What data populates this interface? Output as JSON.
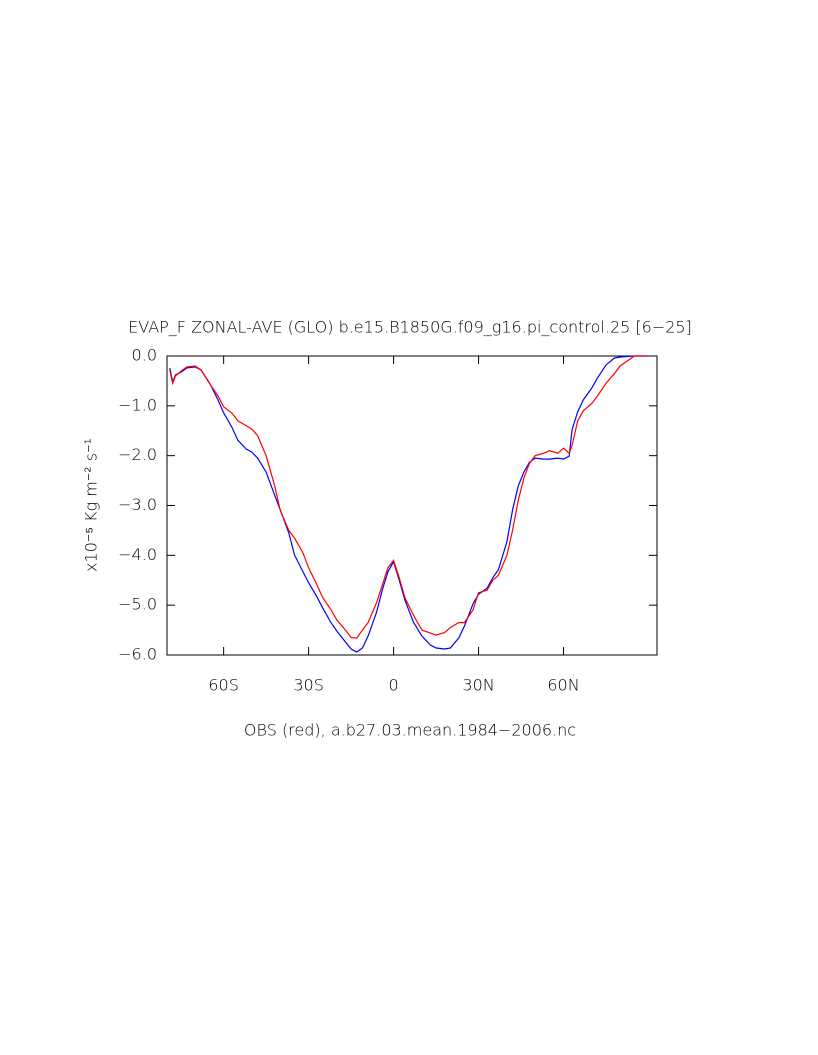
{
  "chart_data": {
    "type": "line",
    "title": "EVAP_F ZONAL-AVE (GLO) b.e15.B1850G.f09_g16.pi_control.25 [6−25]",
    "x_label": "OBS (red), a.b27.03.mean.1984−2006.nc",
    "y_label": "x10⁻⁵ Kg m⁻² s⁻¹",
    "x": [
      -79,
      -78,
      -77,
      -75,
      -73,
      -70,
      -68,
      -65,
      -62,
      -60,
      -57,
      -55,
      -52,
      -50,
      -48,
      -45,
      -42,
      -40,
      -37,
      -35,
      -32,
      -30,
      -27,
      -25,
      -22,
      -20,
      -17,
      -15,
      -13,
      -11,
      -9,
      -6,
      -4,
      -2,
      0,
      2,
      4,
      7,
      10,
      13,
      15,
      18,
      20,
      23,
      25,
      28,
      30,
      33,
      35,
      37,
      40,
      42,
      44,
      46,
      48,
      50,
      53,
      55,
      58,
      60,
      62,
      63,
      65,
      67,
      70,
      72,
      75,
      78,
      80,
      85,
      90
    ],
    "series": [
      {
        "color": "#0000ff",
        "values": [
          -0.24,
          -0.52,
          -0.38,
          -0.32,
          -0.24,
          -0.22,
          -0.28,
          -0.54,
          -0.88,
          -1.14,
          -1.44,
          -1.69,
          -1.87,
          -1.93,
          -2.05,
          -2.33,
          -2.79,
          -3.09,
          -3.55,
          -3.99,
          -4.33,
          -4.55,
          -4.84,
          -5.06,
          -5.36,
          -5.52,
          -5.74,
          -5.88,
          -5.94,
          -5.86,
          -5.62,
          -5.14,
          -4.7,
          -4.33,
          -4.13,
          -4.5,
          -4.9,
          -5.34,
          -5.62,
          -5.8,
          -5.86,
          -5.88,
          -5.86,
          -5.66,
          -5.42,
          -4.98,
          -4.78,
          -4.66,
          -4.45,
          -4.29,
          -3.73,
          -3.09,
          -2.61,
          -2.33,
          -2.13,
          -2.05,
          -2.07,
          -2.07,
          -2.05,
          -2.07,
          -2.01,
          -1.48,
          -1.12,
          -0.88,
          -0.64,
          -0.44,
          -0.18,
          -0.04,
          -0.02,
          0,
          0
        ]
      },
      {
        "color": "#ff0000",
        "values": [
          -0.28,
          -0.55,
          -0.4,
          -0.3,
          -0.22,
          -0.2,
          -0.28,
          -0.55,
          -0.8,
          -1.02,
          -1.15,
          -1.3,
          -1.4,
          -1.47,
          -1.6,
          -2.0,
          -2.6,
          -3.1,
          -3.5,
          -3.65,
          -3.95,
          -4.25,
          -4.6,
          -4.85,
          -5.1,
          -5.3,
          -5.5,
          -5.65,
          -5.66,
          -5.5,
          -5.35,
          -4.95,
          -4.6,
          -4.25,
          -4.1,
          -4.45,
          -4.85,
          -5.2,
          -5.5,
          -5.56,
          -5.6,
          -5.55,
          -5.45,
          -5.35,
          -5.35,
          -5.1,
          -4.75,
          -4.7,
          -4.5,
          -4.4,
          -4.0,
          -3.5,
          -2.9,
          -2.45,
          -2.15,
          -2.0,
          -1.95,
          -1.9,
          -1.95,
          -1.85,
          -1.95,
          -1.8,
          -1.3,
          -1.1,
          -0.95,
          -0.8,
          -0.55,
          -0.35,
          -0.2,
          0,
          0
        ]
      }
    ],
    "xlim": [
      -80,
      93
    ],
    "ylim": [
      -6,
      0
    ],
    "xticks": [
      {
        "value": -60,
        "label": "60S"
      },
      {
        "value": -30,
        "label": "30S"
      },
      0,
      {
        "value": 30,
        "label": "30N"
      },
      {
        "value": 60,
        "label": "60N"
      }
    ],
    "yticks": [
      {
        "value": 0,
        "label": "0.0"
      },
      {
        "value": -1,
        "label": "−1.0"
      },
      {
        "value": -2,
        "label": "−2.0"
      },
      {
        "value": -3,
        "label": "−3.0"
      },
      {
        "value": -4,
        "label": "−4.0"
      },
      {
        "value": -5,
        "label": "−5.0"
      },
      {
        "value": -6,
        "label": "−6.0"
      }
    ]
  }
}
